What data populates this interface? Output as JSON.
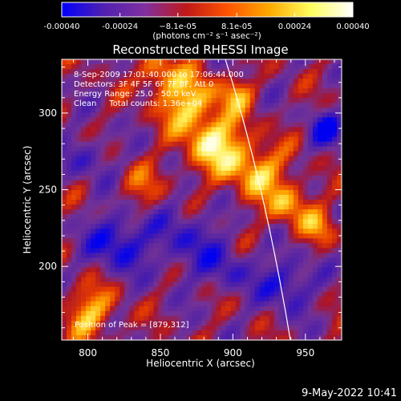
{
  "chart_data": {
    "type": "heatmap",
    "title": "Reconstructed RHESSI Image",
    "xlabel": "Heliocentric X (arcsec)",
    "ylabel": "Heliocentric Y (arcsec)",
    "xlim": [
      782,
      975
    ],
    "ylim": [
      152,
      335
    ],
    "x_ticks": [
      "800",
      "850",
      "900",
      "950"
    ],
    "y_ticks": [
      "200",
      "250",
      "300"
    ],
    "x_tick_values": [
      800,
      850,
      900,
      950
    ],
    "y_tick_values": [
      200,
      250,
      300
    ],
    "colorbar": {
      "range": [
        -0.0004,
        0.0004
      ],
      "tick_labels": [
        "-0.00040",
        "-0.00024",
        "−8.1e-05",
        "8.1e-05",
        "0.00024",
        "0.00040"
      ],
      "tick_values": [
        -0.0004,
        -0.00024,
        -8.1e-05,
        8.1e-05,
        0.00024,
        0.0004
      ],
      "unit_label": "(photons cm⁻² s⁻¹ asec⁻²)",
      "colors": [
        "#0000ff",
        "#5020b0",
        "#8030a0",
        "#c01818",
        "#ff5500",
        "#ffaa00",
        "#ffff60",
        "#ffffff"
      ]
    },
    "annotations": {
      "time_range": "8-Sep-2009 17:01:40.000 to 17:06:44.000",
      "detectors": "Detectors: 3F 4F 5F 6F 7F 8F, Att 0",
      "energy": "Energy Range: 25.0 - 50.0 keV",
      "clean": "Clean     Total counts: 1.36e+04",
      "peak": "Position of Peak = [879,312]"
    },
    "limb": "white solar limb line from upper centre to lower right",
    "timestamp": "9-May-2022 10:41"
  }
}
